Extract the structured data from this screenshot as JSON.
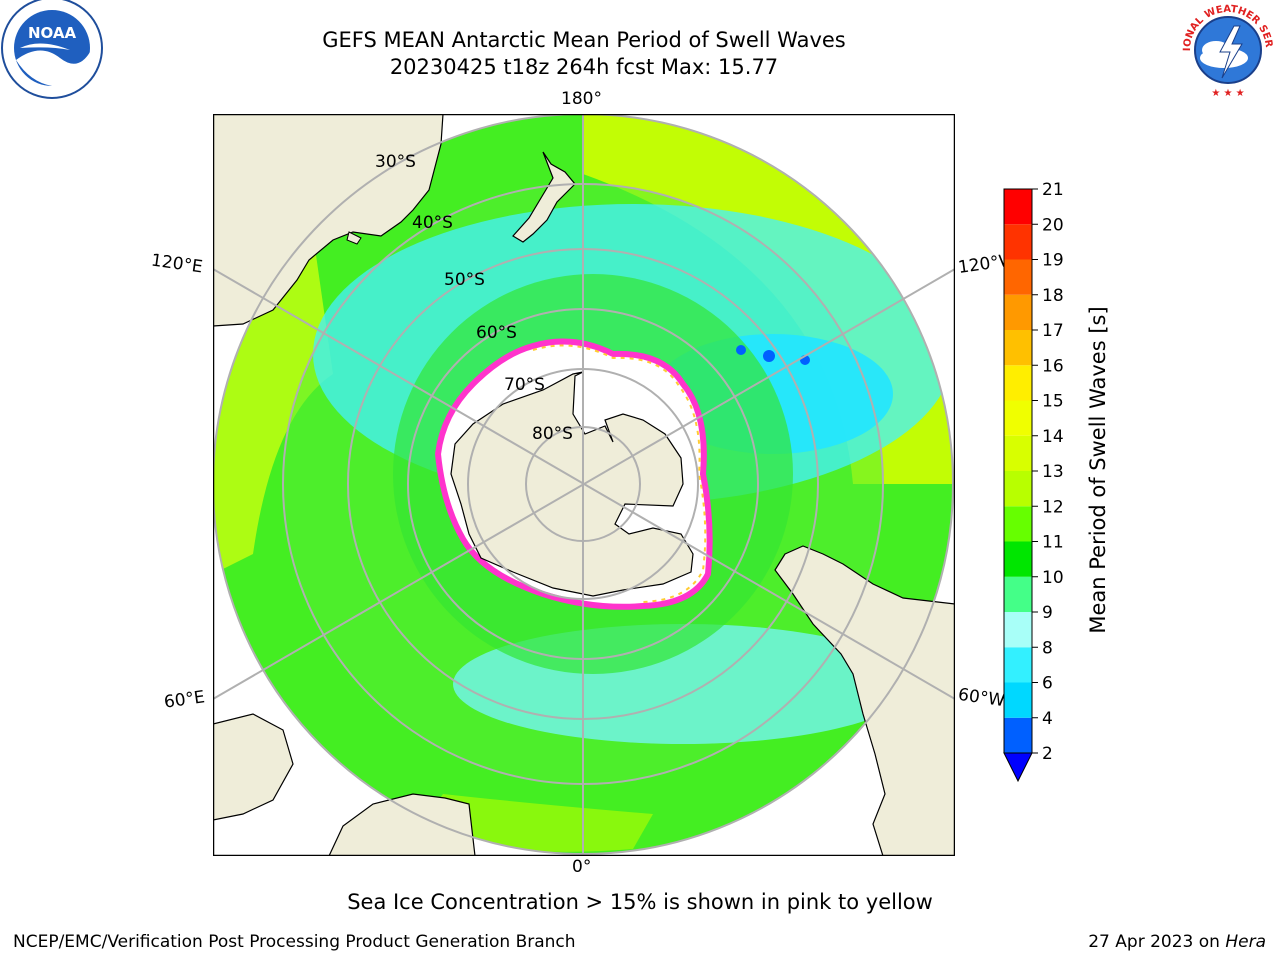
{
  "header": {
    "line1": "GEFS MEAN Antarctic Mean Period of Swell Waves",
    "line2": "20230425 t18z 264h fcst   Max: 15.77"
  },
  "map": {
    "projection": "south-polar-stereographic",
    "longitude_labels": {
      "top": "180°",
      "bottom": "0°",
      "upper_left": "120°E",
      "upper_right": "120°W",
      "lower_left": "60°E",
      "lower_right": "60°W"
    },
    "latitude_labels": [
      "30°S",
      "40°S",
      "50°S",
      "60°S",
      "70°S",
      "80°S"
    ],
    "colors": {
      "land": "#efedd9",
      "sea_ice": "#ffffff",
      "ice_edge_pink": "#ff33cc",
      "ice_edge_yellow": "#ffcc33",
      "grid": "#b0b0b0"
    }
  },
  "colorbar": {
    "label": "Mean Period of Swell Waves [s]",
    "ticks": [
      "2",
      "4",
      "6",
      "8",
      "9",
      "10",
      "11",
      "12",
      "13",
      "14",
      "15",
      "16",
      "17",
      "18",
      "19",
      "20",
      "21"
    ],
    "colors": [
      "#0060ff",
      "#00d8ff",
      "#33f0ff",
      "#a8fff8",
      "#44ff88",
      "#00e600",
      "#66ff00",
      "#b8ff00",
      "#d8ff00",
      "#f0ff00",
      "#ffee00",
      "#ffc000",
      "#ff9900",
      "#ff6600",
      "#ff3300",
      "#ff0000"
    ],
    "extend_color": "#0000ff"
  },
  "notes": {
    "sea_ice": "Sea Ice Concentration > 15% is shown in pink to yellow"
  },
  "footer": {
    "left": "NCEP/EMC/Verification Post Processing Product Generation Branch",
    "right_prefix": "27 Apr 2023 on ",
    "right_host": "Hera"
  },
  "logos": {
    "left": "noaa-logo",
    "right": "national-weather-service-logo",
    "left_text": "NOAA",
    "right_text": "NATIONAL WEATHER SERVICE"
  }
}
